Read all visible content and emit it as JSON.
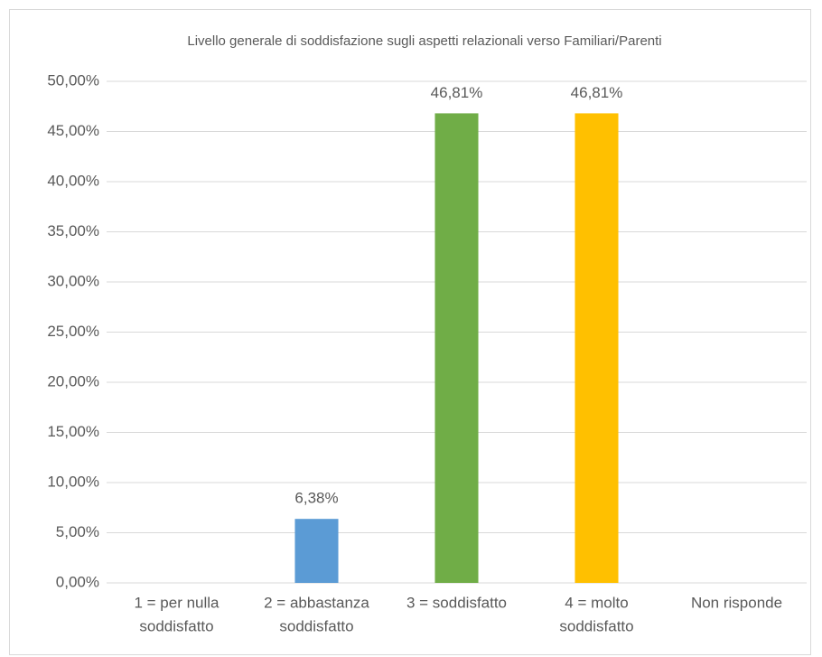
{
  "chart_data": {
    "type": "bar",
    "title": "Livello generale di soddisfazione sugli aspetti relazionali verso Familiari/Parenti",
    "categories": [
      [
        "1 = per nulla",
        "soddisfatto"
      ],
      [
        "2 = abbastanza",
        "soddisfatto"
      ],
      [
        "3 = soddisfatto"
      ],
      [
        "4 = molto",
        "soddisfatto"
      ],
      [
        "Non risponde"
      ]
    ],
    "values": [
      0,
      6.38,
      46.81,
      46.81,
      0
    ],
    "value_labels": [
      null,
      "6,38%",
      "46,81%",
      "46,81%",
      null
    ],
    "colors": [
      null,
      "#5b9bd5",
      "#70ad47",
      "#ffc000",
      null
    ],
    "ylim": [
      0,
      50
    ],
    "yticks": [
      {
        "value": 0,
        "label": "0,00%"
      },
      {
        "value": 5,
        "label": "5,00%"
      },
      {
        "value": 10,
        "label": "10,00%"
      },
      {
        "value": 15,
        "label": "15,00%"
      },
      {
        "value": 20,
        "label": "20,00%"
      },
      {
        "value": 25,
        "label": "25,00%"
      },
      {
        "value": 30,
        "label": "30,00%"
      },
      {
        "value": 35,
        "label": "35,00%"
      },
      {
        "value": 40,
        "label": "40,00%"
      },
      {
        "value": 45,
        "label": "45,00%"
      },
      {
        "value": 50,
        "label": "50,00%"
      }
    ],
    "grid": true
  }
}
